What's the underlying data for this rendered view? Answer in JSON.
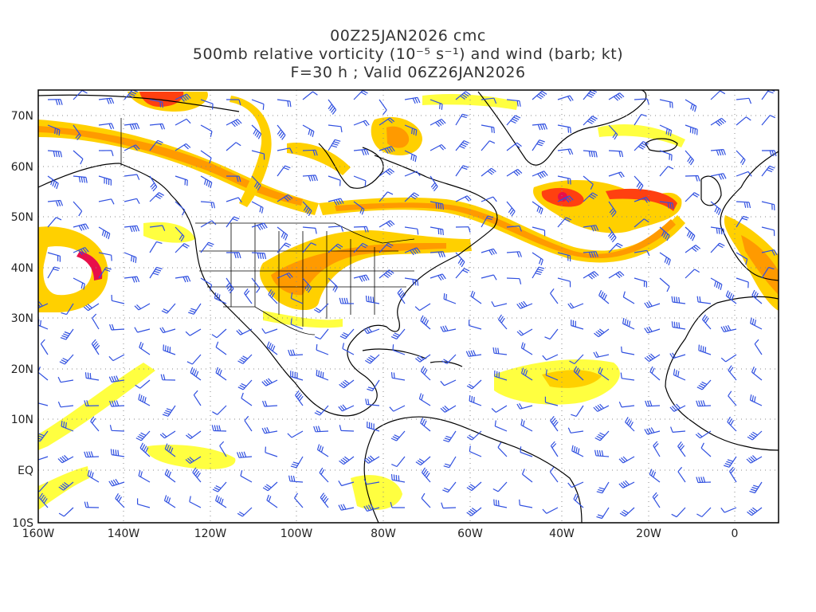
{
  "title": {
    "line1": "00Z25JAN2026 cmc",
    "line2": "500mb relative vorticity (10⁻⁵ s⁻¹) and wind (barb; kt)",
    "line3": "F=30 h ; Valid 06Z26JAN2026"
  },
  "axes": {
    "lat_labels": [
      "70N",
      "60N",
      "50N",
      "40N",
      "30N",
      "20N",
      "10N",
      "EQ",
      "10S"
    ],
    "lon_labels": [
      "160W",
      "140W",
      "120W",
      "100W",
      "80W",
      "60W",
      "40W",
      "20W",
      "0"
    ]
  },
  "colors": {
    "vort_low": "#ffff40",
    "vort_mid": "#ffd000",
    "vort_high": "#ff9a00",
    "vort_max": "#ff4010",
    "vort_peak": "#e8104a",
    "barb": "#3050e0",
    "coast": "#000000",
    "grid": "#888888"
  }
}
